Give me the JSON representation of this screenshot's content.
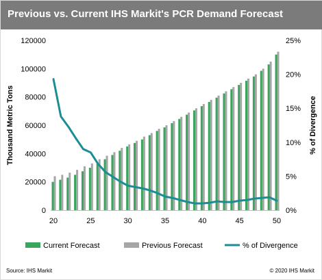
{
  "header": {
    "title": "Previous vs. Current IHS Markit's PCR Demand Forecast"
  },
  "footer": {
    "source": "Source: IHS Markit",
    "copyright": "© 2020 IHS Markit"
  },
  "colors": {
    "current": "#3aa55c",
    "previous": "#a6a6a6",
    "divergence": "#1b8d93",
    "header_bg": "#7b7b7b"
  },
  "chart_data": {
    "type": "bar",
    "xlabel": "",
    "ylabel": "Thousand Metric Tons",
    "y2label": "% of Divergence",
    "ylim": [
      0,
      120000
    ],
    "y2lim": [
      0,
      25
    ],
    "grid": false,
    "legend_position": "bottom",
    "x": [
      20,
      21,
      22,
      23,
      24,
      25,
      26,
      27,
      28,
      29,
      30,
      31,
      32,
      33,
      34,
      35,
      36,
      37,
      38,
      39,
      40,
      41,
      42,
      43,
      44,
      45,
      46,
      47,
      48,
      49,
      50
    ],
    "x_ticks": [
      20,
      25,
      30,
      35,
      40,
      45,
      50
    ],
    "y_ticks": [
      "0",
      "20000",
      "40000",
      "60000",
      "80000",
      "100000",
      "120000"
    ],
    "y2_ticks": [
      "0%",
      "5%",
      "10%",
      "15%",
      "20%",
      "25%"
    ],
    "series": [
      {
        "name": "Current Forecast",
        "kind": "bar",
        "color": "#3aa55c",
        "values": [
          20000,
          21500,
          23000,
          25000,
          27500,
          30000,
          33000,
          36000,
          39000,
          42000,
          45000,
          47500,
          50000,
          53000,
          56000,
          58500,
          61500,
          64500,
          67500,
          70500,
          73500,
          76500,
          79500,
          82500,
          85500,
          88500,
          91500,
          94500,
          98500,
          103000,
          110000
        ]
      },
      {
        "name": "Previous Forecast",
        "kind": "bar",
        "color": "#a6a6a6",
        "values": [
          24000,
          25000,
          26500,
          28500,
          31000,
          33000,
          36000,
          38500,
          41000,
          44000,
          46500,
          49000,
          52000,
          54500,
          57500,
          60000,
          63000,
          66000,
          69000,
          72000,
          75000,
          78000,
          81000,
          84000,
          87000,
          90000,
          93000,
          96000,
          100000,
          105000,
          112000
        ]
      },
      {
        "name": "% of Divergence",
        "kind": "line",
        "axis": "right",
        "color": "#1b8d93",
        "values": [
          19.3,
          13.8,
          12.3,
          10.6,
          9.0,
          8.5,
          6.8,
          5.6,
          4.9,
          4.2,
          3.6,
          3.4,
          3.2,
          2.9,
          2.5,
          2.0,
          1.8,
          1.5,
          1.2,
          1.0,
          1.0,
          1.1,
          1.3,
          1.2,
          1.2,
          1.4,
          1.5,
          1.7,
          1.8,
          1.9,
          1.4
        ]
      }
    ]
  }
}
